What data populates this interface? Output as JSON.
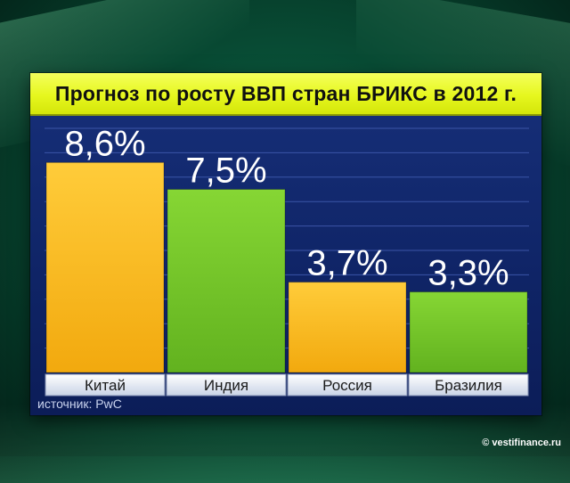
{
  "chart_data": {
    "type": "bar",
    "title": "Прогноз по росту ВВП стран БРИКС в 2012 г.",
    "categories": [
      "Китай",
      "Индия",
      "Россия",
      "Бразилия"
    ],
    "values": [
      8.6,
      7.5,
      3.7,
      3.3
    ],
    "value_labels": [
      "8,6%",
      "7,5%",
      "3,7%",
      "3,3%"
    ],
    "colors": [
      "#f5b81c",
      "#74c62a",
      "#f5b81c",
      "#74c62a"
    ],
    "ylim": [
      0,
      10
    ],
    "grid": true,
    "legend": "none"
  },
  "source_text": "источник: PwC",
  "watermark_text": "© vestifinance.ru"
}
